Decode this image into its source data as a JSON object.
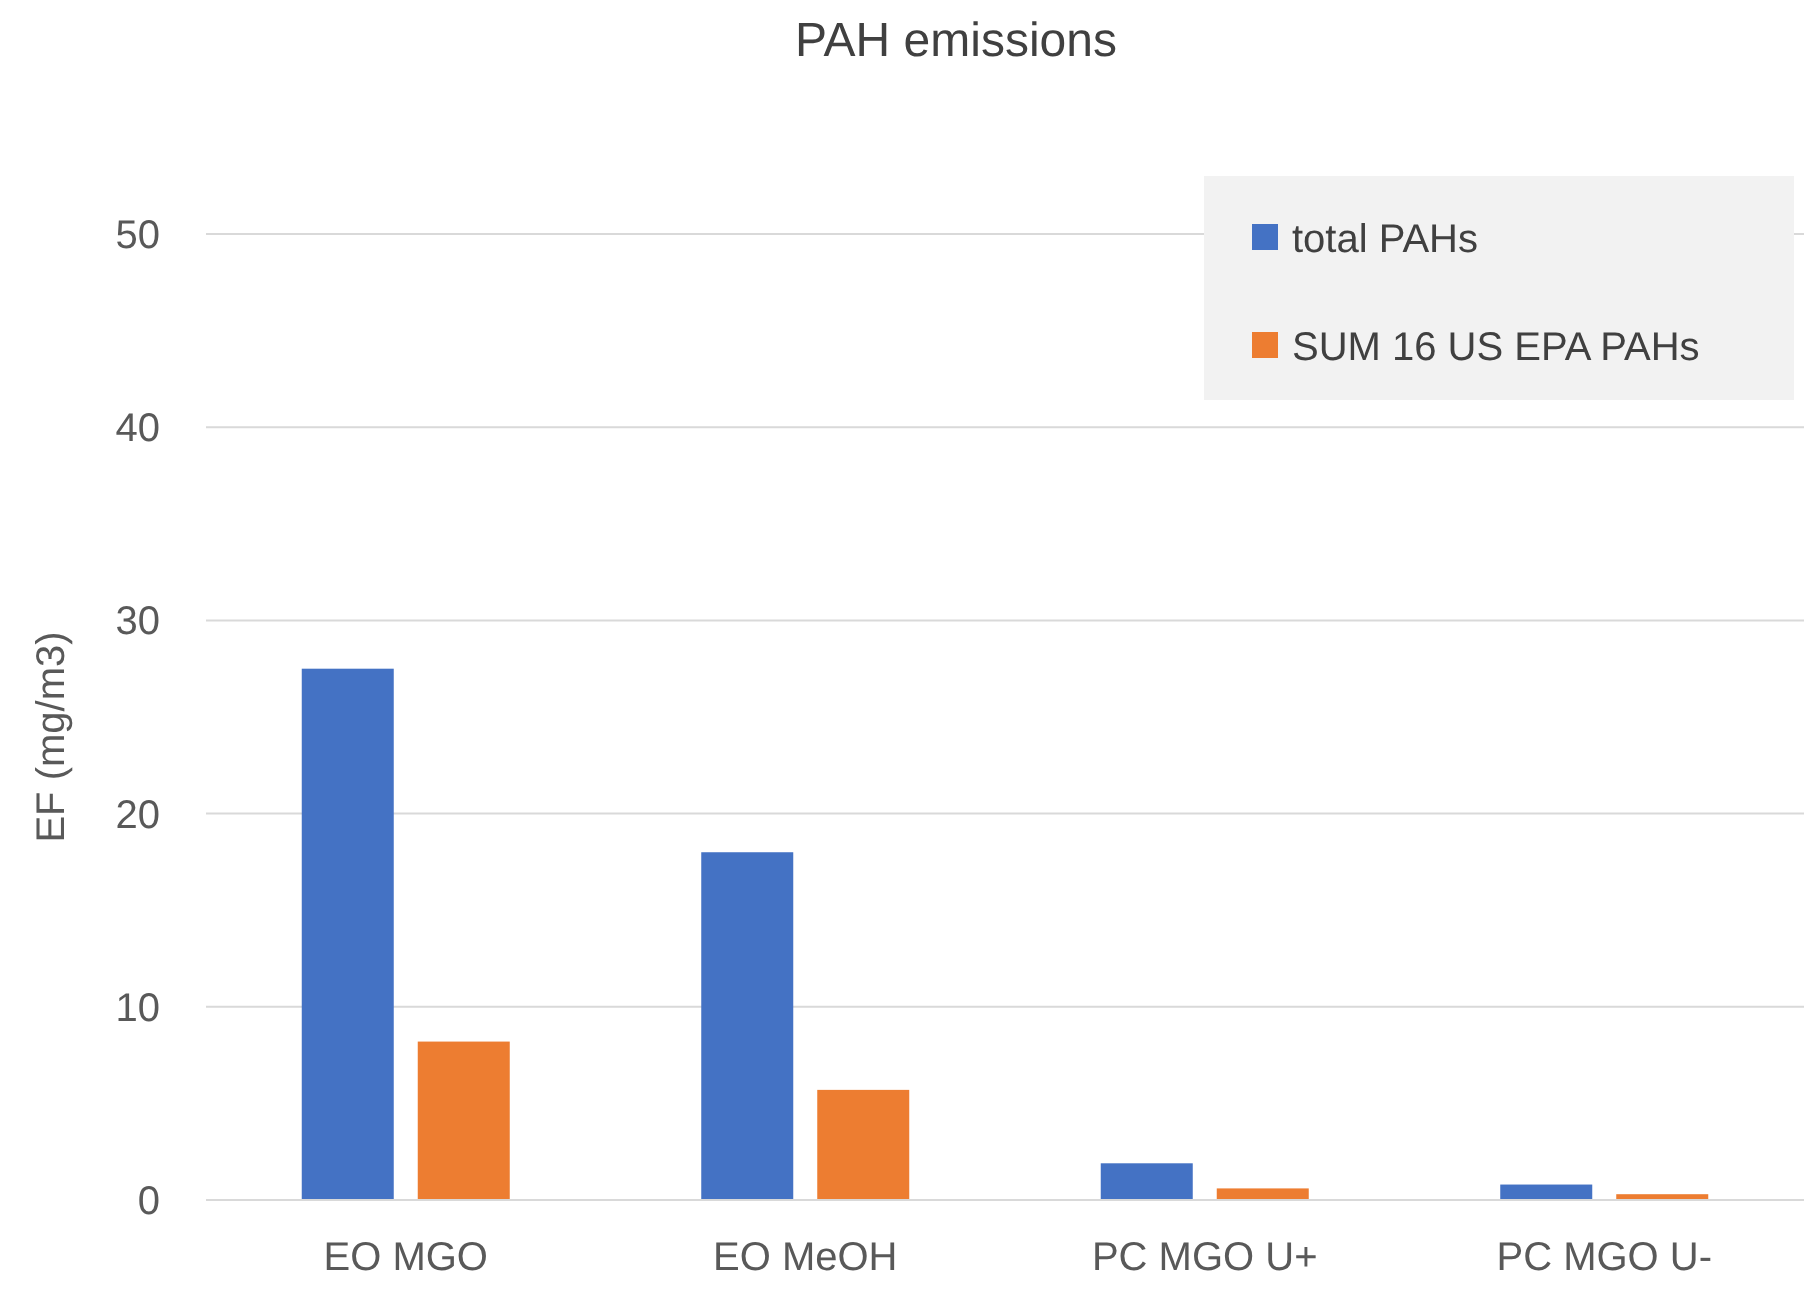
{
  "chart_data": {
    "type": "bar",
    "title": "PAH emissions",
    "ylabel": "EF (mg/m3)",
    "categories": [
      "EO MGO",
      "EO MeOH",
      "PC MGO U+",
      "PC MGO U-"
    ],
    "series": [
      {
        "name": "total PAHs",
        "color": "#4472c4",
        "values": [
          27.5,
          18.0,
          1.9,
          0.8
        ]
      },
      {
        "name": "SUM 16 US EPA PAHs",
        "color": "#ed7d31",
        "values": [
          8.2,
          5.7,
          0.6,
          0.3
        ]
      }
    ],
    "ylim": [
      0,
      50
    ],
    "yticks": [
      0,
      10,
      20,
      30,
      40,
      50
    ],
    "grid": "y",
    "legend": "top right"
  }
}
